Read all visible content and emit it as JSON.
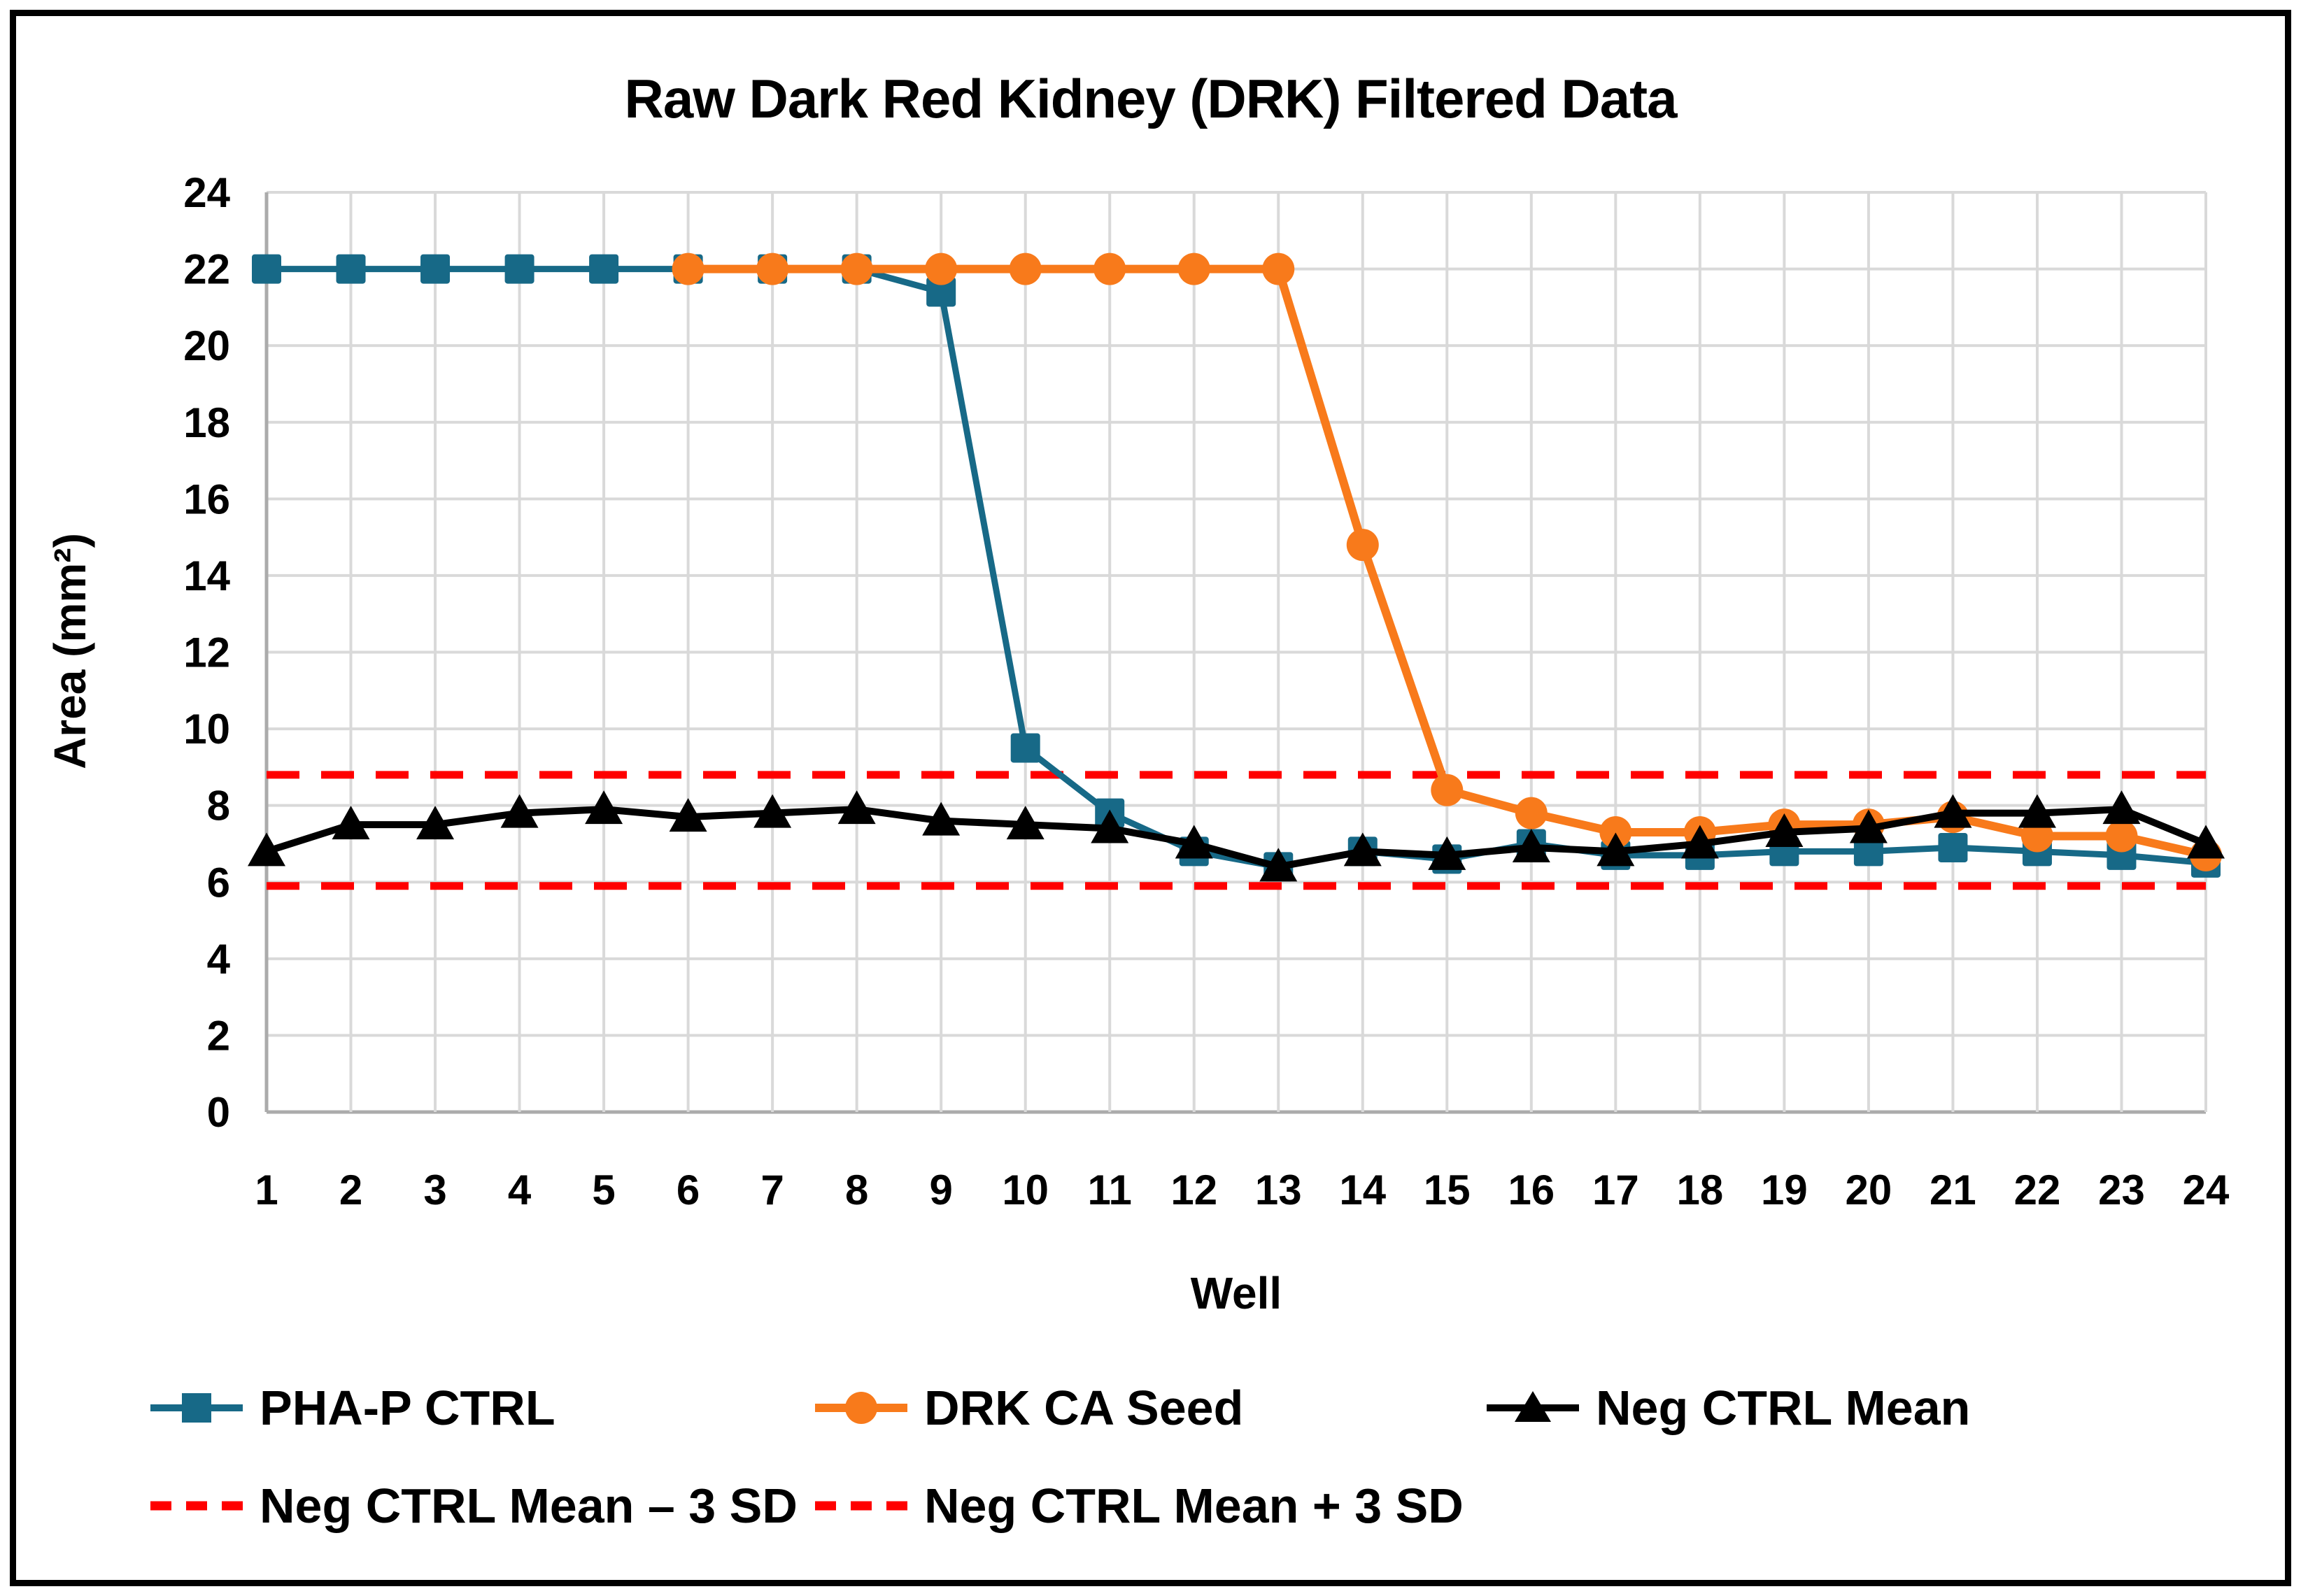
{
  "chart": {
    "title": "Raw Dark Red Kidney (DRK) Filtered Data",
    "xlabel": "Well",
    "ylabel": "Area (mm²)"
  },
  "legend": {
    "items": [
      {
        "label": "PHA-P CTRL",
        "color": "#176987",
        "marker": "square"
      },
      {
        "label": "DRK CA Seed",
        "color": "#F87A1B",
        "marker": "circle"
      },
      {
        "label": "Neg CTRL Mean",
        "color": "#000000",
        "marker": "triangle"
      },
      {
        "label": "Neg CTRL Mean – 3 SD",
        "color": "#FF0000",
        "marker": "dashed-line"
      },
      {
        "label": "Neg CTRL Mean + 3 SD",
        "color": "#FF0000",
        "marker": "dashed-line"
      }
    ]
  },
  "chart_data": {
    "type": "line",
    "title": "Raw Dark Red Kidney (DRK) Filtered Data",
    "xlabel": "Well",
    "ylabel": "Area (mm²)",
    "categories": [
      1,
      2,
      3,
      4,
      5,
      6,
      7,
      8,
      9,
      10,
      11,
      12,
      13,
      14,
      15,
      16,
      17,
      18,
      19,
      20,
      21,
      22,
      23,
      24
    ],
    "ylim": [
      0,
      24
    ],
    "ytick_step": 2,
    "grid": true,
    "legend_position": "bottom",
    "series": [
      {
        "name": "PHA-P CTRL",
        "marker": "square",
        "color": "#176987",
        "values": [
          22,
          22,
          22,
          22,
          22,
          22,
          22,
          22,
          21.4,
          9.5,
          7.8,
          6.8,
          6.4,
          6.8,
          6.6,
          7.0,
          6.7,
          6.7,
          6.8,
          6.8,
          6.9,
          6.8,
          6.7,
          6.5
        ]
      },
      {
        "name": "DRK CA Seed",
        "marker": "circle",
        "color": "#F87A1B",
        "values": [
          null,
          null,
          null,
          null,
          null,
          22,
          22,
          22,
          22,
          22,
          22,
          22,
          22,
          14.8,
          8.4,
          7.8,
          7.3,
          7.3,
          7.5,
          7.5,
          7.7,
          7.2,
          7.2,
          6.7
        ]
      },
      {
        "name": "Neg CTRL Mean",
        "marker": "triangle",
        "color": "#000000",
        "values": [
          6.8,
          7.5,
          7.5,
          7.8,
          7.9,
          7.7,
          7.8,
          7.9,
          7.6,
          7.5,
          7.4,
          7.0,
          6.4,
          6.8,
          6.7,
          6.9,
          6.8,
          7.0,
          7.3,
          7.4,
          7.8,
          7.8,
          7.9,
          7.0
        ]
      }
    ],
    "hlines": [
      {
        "name": "Neg CTRL Mean + 3 SD",
        "value": 8.8,
        "color": "#FF0000",
        "style": "dashed"
      },
      {
        "name": "Neg CTRL Mean – 3 SD",
        "value": 5.9,
        "color": "#FF0000",
        "style": "dashed"
      }
    ],
    "colors": {
      "grid": "#D9D9D9",
      "axis": "#ABABAB",
      "tick_text": "#000000"
    }
  }
}
